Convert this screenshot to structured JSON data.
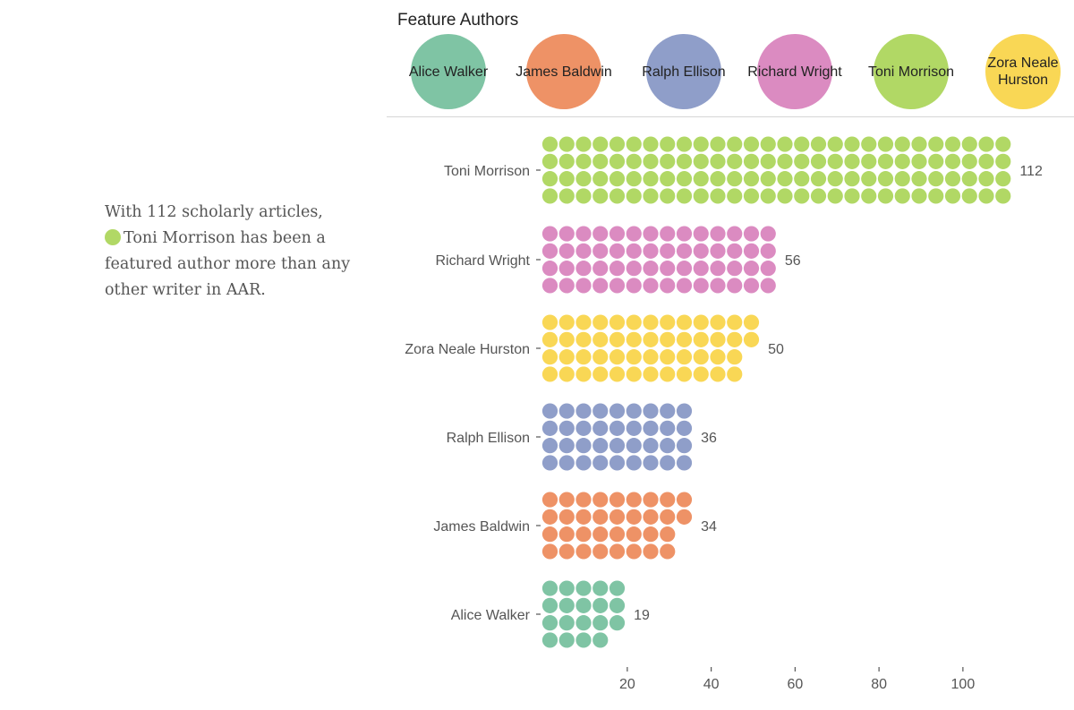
{
  "legend": {
    "title": "Feature Authors",
    "items": [
      {
        "name": "Alice Walker",
        "color": "#7fc4a4"
      },
      {
        "name": "James Baldwin",
        "color": "#ee9266"
      },
      {
        "name": "Ralph Ellison",
        "color": "#8f9ec9"
      },
      {
        "name": "Richard Wright",
        "color": "#db8bc1"
      },
      {
        "name": "Toni Morrison",
        "color": "#b1d865"
      },
      {
        "name": "Zora Neale Hurston",
        "color": "#f9d755"
      }
    ]
  },
  "annotation": {
    "line1": "With 112 scholarly articles,",
    "highlight_color": "#b1d865",
    "rest": "Toni Morrison has been a featured author more than any other writer in AAR."
  },
  "chart_data": {
    "type": "waffle-bar",
    "title": "Feature Authors",
    "dots_per_column": 4,
    "categories": [
      "Toni Morrison",
      "Richard Wright",
      "Zora Neale Hurston",
      "Ralph Ellison",
      "James Baldwin",
      "Alice Walker"
    ],
    "values": [
      112,
      56,
      50,
      36,
      34,
      19
    ],
    "colors": [
      "#b1d865",
      "#db8bc1",
      "#f9d755",
      "#8f9ec9",
      "#ee9266",
      "#7fc4a4"
    ],
    "x_ticks": [
      20,
      40,
      60,
      80,
      100
    ],
    "xlabel": "",
    "ylabel": ""
  }
}
